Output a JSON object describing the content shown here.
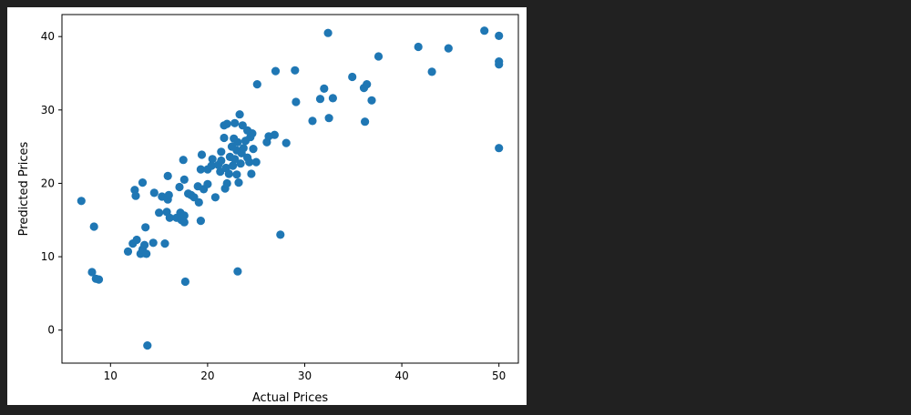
{
  "chart_data": {
    "type": "scatter",
    "title": "",
    "xlabel": "Actual Prices",
    "ylabel": "Predicted Prices",
    "xlim": [
      5,
      52
    ],
    "ylim": [
      -4.5,
      43
    ],
    "xticks": [
      10,
      20,
      30,
      40,
      50
    ],
    "yticks": [
      0,
      10,
      20,
      30,
      40
    ],
    "grid": false,
    "marker_color": "#1f77b4",
    "points": [
      [
        7.0,
        17.6
      ],
      [
        8.3,
        14.1
      ],
      [
        8.1,
        7.9
      ],
      [
        8.5,
        7.0
      ],
      [
        8.8,
        6.9
      ],
      [
        11.8,
        10.7
      ],
      [
        12.3,
        11.8
      ],
      [
        12.7,
        12.3
      ],
      [
        13.1,
        10.4
      ],
      [
        13.5,
        10.5
      ],
      [
        13.3,
        11.0
      ],
      [
        13.7,
        10.4
      ],
      [
        13.5,
        11.6
      ],
      [
        14.4,
        11.9
      ],
      [
        15.6,
        11.8
      ],
      [
        13.6,
        14.0
      ],
      [
        12.5,
        19.1
      ],
      [
        12.6,
        18.3
      ],
      [
        13.3,
        20.1
      ],
      [
        14.5,
        18.7
      ],
      [
        15.3,
        18.2
      ],
      [
        15.0,
        16.0
      ],
      [
        15.8,
        16.1
      ],
      [
        16.1,
        15.3
      ],
      [
        15.9,
        17.8
      ],
      [
        16.0,
        18.4
      ],
      [
        15.9,
        21.0
      ],
      [
        16.8,
        15.3
      ],
      [
        17.2,
        16.0
      ],
      [
        17.3,
        15.0
      ],
      [
        17.6,
        14.7
      ],
      [
        17.6,
        15.6
      ],
      [
        17.1,
        19.5
      ],
      [
        17.6,
        20.5
      ],
      [
        17.5,
        23.2
      ],
      [
        18.0,
        18.6
      ],
      [
        18.3,
        18.4
      ],
      [
        18.6,
        18.1
      ],
      [
        19.0,
        19.6
      ],
      [
        19.1,
        17.4
      ],
      [
        19.3,
        14.9
      ],
      [
        19.6,
        19.2
      ],
      [
        19.3,
        21.9
      ],
      [
        19.4,
        23.9
      ],
      [
        20.0,
        19.9
      ],
      [
        20.0,
        21.9
      ],
      [
        20.4,
        22.4
      ],
      [
        20.5,
        23.3
      ],
      [
        20.8,
        18.1
      ],
      [
        21.1,
        22.5
      ],
      [
        21.3,
        21.6
      ],
      [
        21.4,
        23.1
      ],
      [
        21.4,
        24.3
      ],
      [
        21.8,
        19.3
      ],
      [
        21.9,
        22.1
      ],
      [
        22.0,
        20.0
      ],
      [
        22.2,
        21.3
      ],
      [
        22.3,
        23.6
      ],
      [
        22.5,
        25.0
      ],
      [
        22.7,
        26.1
      ],
      [
        22.6,
        22.4
      ],
      [
        22.8,
        23.3
      ],
      [
        23.0,
        24.5
      ],
      [
        23.1,
        25.6
      ],
      [
        23.0,
        21.2
      ],
      [
        23.2,
        20.1
      ],
      [
        23.4,
        22.7
      ],
      [
        23.5,
        24.1
      ],
      [
        23.7,
        24.8
      ],
      [
        23.9,
        25.8
      ],
      [
        24.1,
        23.5
      ],
      [
        24.3,
        22.9
      ],
      [
        24.4,
        26.3
      ],
      [
        24.6,
        26.8
      ],
      [
        24.7,
        24.7
      ],
      [
        25.0,
        22.9
      ],
      [
        24.5,
        21.3
      ],
      [
        21.7,
        26.2
      ],
      [
        21.7,
        27.9
      ],
      [
        22.0,
        28.1
      ],
      [
        22.8,
        28.2
      ],
      [
        23.3,
        29.4
      ],
      [
        23.6,
        27.9
      ],
      [
        24.1,
        27.2
      ],
      [
        26.1,
        25.6
      ],
      [
        26.3,
        26.4
      ],
      [
        26.9,
        26.6
      ],
      [
        28.1,
        25.5
      ],
      [
        25.1,
        33.5
      ],
      [
        27.0,
        35.3
      ],
      [
        29.0,
        35.4
      ],
      [
        29.1,
        31.1
      ],
      [
        30.8,
        28.5
      ],
      [
        31.6,
        31.5
      ],
      [
        32.0,
        32.9
      ],
      [
        32.5,
        28.9
      ],
      [
        32.9,
        31.6
      ],
      [
        32.4,
        40.5
      ],
      [
        34.9,
        34.5
      ],
      [
        36.1,
        33.0
      ],
      [
        36.4,
        33.5
      ],
      [
        36.2,
        28.4
      ],
      [
        36.9,
        31.3
      ],
      [
        37.6,
        37.3
      ],
      [
        41.7,
        38.6
      ],
      [
        43.1,
        35.2
      ],
      [
        44.8,
        38.4
      ],
      [
        48.5,
        40.8
      ],
      [
        50.0,
        40.1
      ],
      [
        50.0,
        36.6
      ],
      [
        50.0,
        36.2
      ],
      [
        50.0,
        24.8
      ],
      [
        27.5,
        13.0
      ],
      [
        23.1,
        8.0
      ],
      [
        17.7,
        6.6
      ],
      [
        13.8,
        -2.1
      ]
    ]
  }
}
